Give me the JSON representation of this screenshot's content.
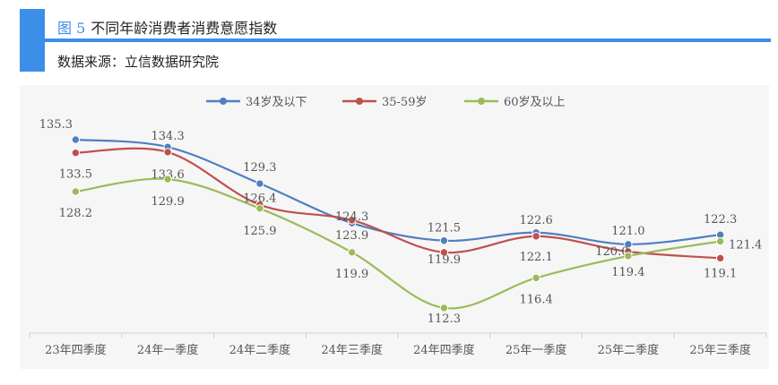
{
  "header": {
    "figure_number": "图 5",
    "title": "不同年龄消费者消费意愿指数",
    "source": "数据来源：立信数据研究院"
  },
  "chart_data": {
    "type": "line",
    "title": "不同年龄消费者消费意愿指数",
    "xlabel": "",
    "ylabel": "",
    "legend_position": "top",
    "grid": false,
    "categories": [
      "23年四季度",
      "24年一季度",
      "24年二季度",
      "24年三季度",
      "24年四季度",
      "25年一季度",
      "25年二季度",
      "25年三季度"
    ],
    "series": [
      {
        "name": "34岁及以下",
        "color": "#4f7fc0",
        "values": [
          135.3,
          134.3,
          129.3,
          123.9,
          121.5,
          122.6,
          121.0,
          122.3
        ]
      },
      {
        "name": "35-59岁",
        "color": "#c0504d",
        "values": [
          133.5,
          133.6,
          126.4,
          124.3,
          119.9,
          122.1,
          120.0,
          119.1
        ]
      },
      {
        "name": "60岁及以上",
        "color": "#9bbb59",
        "values": [
          128.2,
          129.9,
          125.9,
          119.9,
          112.3,
          116.4,
          119.4,
          121.4
        ]
      }
    ]
  }
}
